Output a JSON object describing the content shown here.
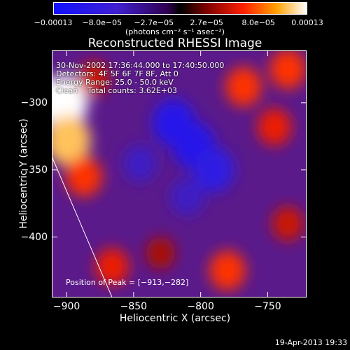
{
  "chart_data": {
    "type": "heatmap",
    "title": "Reconstructed RHESSI Image",
    "xlabel": "Heliocentric X (arcsec)",
    "ylabel": "Heliocentric Y (arcsec)",
    "xlim": [
      -911,
      -721
    ],
    "ylim": [
      -445,
      -261
    ],
    "x_ticks": [
      "−900",
      "−850",
      "−800",
      "−750"
    ],
    "x_tick_values": [
      -900,
      -850,
      -800,
      -750
    ],
    "y_ticks": [
      "−300",
      "−350",
      "−400"
    ],
    "y_tick_values": [
      -300,
      -350,
      -400
    ],
    "colorbar": {
      "ticks": [
        "−0.00013",
        "−8.0e−05",
        "−2.7e−05",
        "2.7e−05",
        "8.0e−05",
        "0.00013"
      ],
      "tick_values": [
        -0.00013,
        -8e-05,
        -2.7e-05,
        2.7e-05,
        8e-05,
        0.00013
      ],
      "range": [
        -0.00013,
        0.00013
      ],
      "unit": "(photons cm⁻² s⁻¹ asec⁻²)",
      "colormap": "blue-purple-red-orange-yellow-white"
    },
    "annotations": [
      "30-Nov-2002 17:36:44.000 to 17:40:50.000",
      "Detectors: 4F 5F 6F 7F 8F, Att 0",
      "Energy Range: 25.0 - 50.0 keV",
      "Clean    Total counts: 3.62E+03"
    ],
    "peak_label": "Position of Peak = [−913,−282]",
    "limb_line": [
      [
        -911,
        -340
      ],
      [
        -866,
        -445
      ]
    ],
    "sources": [
      {
        "x": -903,
        "y": -300,
        "value": 0.00013
      },
      {
        "x": -899,
        "y": -328,
        "value": 0.00011
      },
      {
        "x": -887,
        "y": -355,
        "value": 7e-05
      },
      {
        "x": -880,
        "y": -282,
        "value": 5e-05
      },
      {
        "x": -768,
        "y": -288,
        "value": 7e-05
      },
      {
        "x": -735,
        "y": -275,
        "value": 7e-05
      },
      {
        "x": -745,
        "y": -318,
        "value": 6e-05
      },
      {
        "x": -866,
        "y": -422,
        "value": 6e-05
      },
      {
        "x": -780,
        "y": -425,
        "value": 7e-05
      },
      {
        "x": -830,
        "y": -412,
        "value": 4e-05
      },
      {
        "x": -735,
        "y": -390,
        "value": 5e-05
      },
      {
        "x": -820,
        "y": -315,
        "value": -0.0001
      },
      {
        "x": -805,
        "y": -332,
        "value": -0.0001
      },
      {
        "x": -790,
        "y": -350,
        "value": -9e-05
      },
      {
        "x": -845,
        "y": -345,
        "value": -6e-05
      },
      {
        "x": -810,
        "y": -370,
        "value": -6e-05
      }
    ]
  },
  "timestamp": "19-Apr-2013 19:33"
}
